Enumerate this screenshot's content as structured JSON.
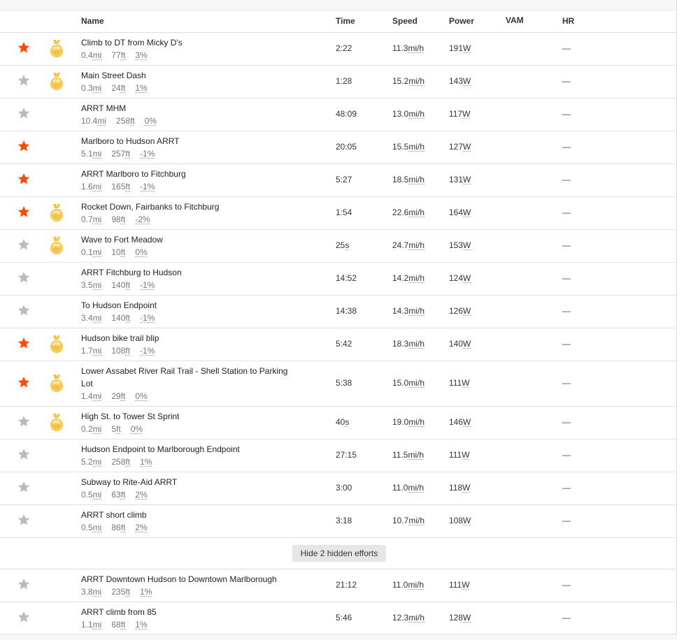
{
  "header": {
    "name": "Name",
    "time": "Time",
    "speed": "Speed",
    "power": "Power",
    "vam": "VAM",
    "hr": "HR"
  },
  "colors": {
    "star_on": "#fc4c02",
    "star_off": "#bbbbbb",
    "medal": "#f5c242"
  },
  "rows": [
    {
      "name": "Climb to DT from Micky D's",
      "dist": "0.4",
      "dist_unit": "mi",
      "elev": "77",
      "elev_unit": "ft",
      "grade": "3%",
      "time": "2:22",
      "time_unit": "",
      "speed": "11.3",
      "speed_unit": "mi/h",
      "power": "191",
      "power_unit": "W",
      "hr": "—",
      "starred": true,
      "pr": true,
      "pr_label": "PR"
    },
    {
      "name": "Main Street Dash",
      "dist": "0.3",
      "dist_unit": "mi",
      "elev": "24",
      "elev_unit": "ft",
      "grade": "1%",
      "time": "1:28",
      "time_unit": "",
      "speed": "15.2",
      "speed_unit": "mi/h",
      "power": "143",
      "power_unit": "W",
      "hr": "—",
      "starred": false,
      "pr": true,
      "pr_label": "PR"
    },
    {
      "name": "ARRT MHM",
      "dist": "10.4",
      "dist_unit": "mi",
      "elev": "258",
      "elev_unit": "ft",
      "grade": "0%",
      "time": "48:09",
      "time_unit": "",
      "speed": "13.0",
      "speed_unit": "mi/h",
      "power": "117",
      "power_unit": "W",
      "hr": "—",
      "starred": false,
      "pr": false
    },
    {
      "name": "Marlboro to Hudson ARRT",
      "dist": "5.1",
      "dist_unit": "mi",
      "elev": "257",
      "elev_unit": "ft",
      "grade": "-1%",
      "time": "20:05",
      "time_unit": "",
      "speed": "15.5",
      "speed_unit": "mi/h",
      "power": "127",
      "power_unit": "W",
      "hr": "—",
      "starred": true,
      "pr": false
    },
    {
      "name": "ARRT Marlboro to Fitchburg",
      "dist": "1.6",
      "dist_unit": "mi",
      "elev": "165",
      "elev_unit": "ft",
      "grade": "-1%",
      "time": "5:27",
      "time_unit": "",
      "speed": "18.5",
      "speed_unit": "mi/h",
      "power": "131",
      "power_unit": "W",
      "hr": "—",
      "starred": true,
      "pr": false
    },
    {
      "name": "Rocket Down, Fairbanks to Fitchburg",
      "dist": "0.7",
      "dist_unit": "mi",
      "elev": "98",
      "elev_unit": "ft",
      "grade": "-2%",
      "time": "1:54",
      "time_unit": "",
      "speed": "22.6",
      "speed_unit": "mi/h",
      "power": "164",
      "power_unit": "W",
      "hr": "—",
      "starred": true,
      "pr": true,
      "pr_label": "PR"
    },
    {
      "name": "Wave to Fort Meadow",
      "dist": "0.1",
      "dist_unit": "mi",
      "elev": "10",
      "elev_unit": "ft",
      "grade": "0%",
      "time": "25",
      "time_unit": "s",
      "speed": "24.7",
      "speed_unit": "mi/h",
      "power": "153",
      "power_unit": "W",
      "hr": "—",
      "starred": false,
      "pr": true,
      "pr_label": "PR"
    },
    {
      "name": "ARRT Fitchburg to Hudson",
      "dist": "3.5",
      "dist_unit": "mi",
      "elev": "140",
      "elev_unit": "ft",
      "grade": "-1%",
      "time": "14:52",
      "time_unit": "",
      "speed": "14.2",
      "speed_unit": "mi/h",
      "power": "124",
      "power_unit": "W",
      "hr": "—",
      "starred": false,
      "pr": false
    },
    {
      "name": "To Hudson Endpoint",
      "dist": "3.4",
      "dist_unit": "mi",
      "elev": "140",
      "elev_unit": "ft",
      "grade": "-1%",
      "time": "14:38",
      "time_unit": "",
      "speed": "14.3",
      "speed_unit": "mi/h",
      "power": "126",
      "power_unit": "W",
      "hr": "—",
      "starred": false,
      "pr": false
    },
    {
      "name": "Hudson bike trail blip",
      "dist": "1.7",
      "dist_unit": "mi",
      "elev": "108",
      "elev_unit": "ft",
      "grade": "-1%",
      "time": "5:42",
      "time_unit": "",
      "speed": "18.3",
      "speed_unit": "mi/h",
      "power": "140",
      "power_unit": "W",
      "hr": "—",
      "starred": true,
      "pr": true,
      "pr_label": "PR"
    },
    {
      "name": "Lower Assabet River Rail Trail - Shell Station to Parking Lot",
      "dist": "1.4",
      "dist_unit": "mi",
      "elev": "29",
      "elev_unit": "ft",
      "grade": "0%",
      "time": "5:38",
      "time_unit": "",
      "speed": "15.0",
      "speed_unit": "mi/h",
      "power": "111",
      "power_unit": "W",
      "hr": "—",
      "starred": true,
      "pr": true,
      "pr_label": "PR",
      "tall": true
    },
    {
      "name": "High St. to Tower St Sprint",
      "dist": "0.2",
      "dist_unit": "mi",
      "elev": "5",
      "elev_unit": "ft",
      "grade": "0%",
      "time": "40",
      "time_unit": "s",
      "speed": "19.0",
      "speed_unit": "mi/h",
      "power": "146",
      "power_unit": "W",
      "hr": "—",
      "starred": false,
      "pr": true,
      "pr_label": "PR"
    },
    {
      "name": "Hudson Endpoint to Marlborough Endpoint",
      "dist": "5.2",
      "dist_unit": "mi",
      "elev": "258",
      "elev_unit": "ft",
      "grade": "1%",
      "time": "27:15",
      "time_unit": "",
      "speed": "11.5",
      "speed_unit": "mi/h",
      "power": "111",
      "power_unit": "W",
      "hr": "—",
      "starred": false,
      "pr": false
    },
    {
      "name": "Subway to Rite-Aid ARRT",
      "dist": "0.5",
      "dist_unit": "mi",
      "elev": "63",
      "elev_unit": "ft",
      "grade": "2%",
      "time": "3:00",
      "time_unit": "",
      "speed": "11.0",
      "speed_unit": "mi/h",
      "power": "118",
      "power_unit": "W",
      "hr": "—",
      "starred": false,
      "pr": false
    },
    {
      "name": "ARRT short climb",
      "dist": "0.5",
      "dist_unit": "mi",
      "elev": "86",
      "elev_unit": "ft",
      "grade": "2%",
      "time": "3:18",
      "time_unit": "",
      "speed": "10.7",
      "speed_unit": "mi/h",
      "power": "108",
      "power_unit": "W",
      "hr": "—",
      "starred": false,
      "pr": false
    }
  ],
  "hidden_button": {
    "label": "Hide 2 hidden efforts"
  },
  "hidden_rows": [
    {
      "name": "ARRT Downtown Hudson to Downtown Marlborough",
      "dist": "3.8",
      "dist_unit": "mi",
      "elev": "235",
      "elev_unit": "ft",
      "grade": "1%",
      "time": "21:12",
      "time_unit": "",
      "speed": "11.0",
      "speed_unit": "mi/h",
      "power": "111",
      "power_unit": "W",
      "hr": "—",
      "starred": false,
      "pr": false
    },
    {
      "name": "ARRT climb from 85",
      "dist": "1.1",
      "dist_unit": "mi",
      "elev": "68",
      "elev_unit": "ft",
      "grade": "1%",
      "time": "5:46",
      "time_unit": "",
      "speed": "12.3",
      "speed_unit": "mi/h",
      "power": "128",
      "power_unit": "W",
      "hr": "—",
      "starred": false,
      "pr": false
    }
  ]
}
